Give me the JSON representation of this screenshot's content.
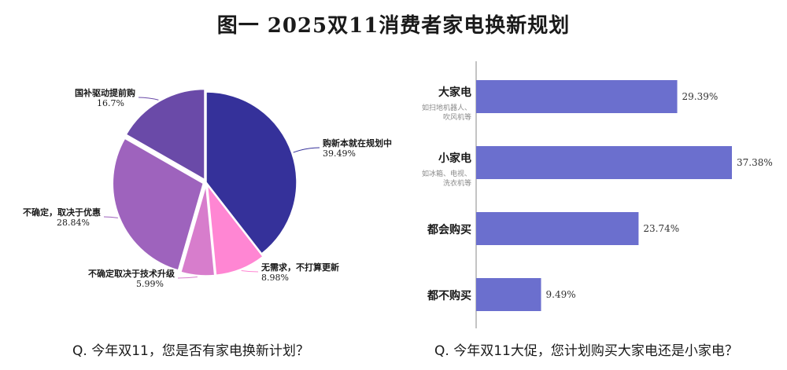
{
  "title": "图一  2025双11消费者家电换新规划",
  "chart_data": [
    {
      "type": "pie",
      "question": "Q. 今年双11，您是否有家电换新计划？",
      "slices": [
        {
          "label": "购新本就在规划中",
          "value": 39.49,
          "value_label": "39.49%",
          "color": "#35319a"
        },
        {
          "label": "无需求，不打算更新",
          "value": 8.98,
          "value_label": "8.98%",
          "color": "#ff86d3"
        },
        {
          "label": "不确定取决于技术升级",
          "value": 5.99,
          "value_label": "5.99%",
          "color": "#d77dcc"
        },
        {
          "label": "不确定，取决于优惠",
          "value": 28.84,
          "value_label": "28.84%",
          "color": "#9e63bd"
        },
        {
          "label": "国补驱动提前购",
          "value": 16.7,
          "value_label": "16.7%",
          "color": "#6a4aa8"
        }
      ]
    },
    {
      "type": "bar",
      "orientation": "horizontal",
      "question": "Q. 今年双11大促，您计划购买大家电还是小家电？",
      "color": "#6b6fce",
      "xlim": [
        0,
        40
      ],
      "categories": [
        {
          "label": "大家电",
          "sublabel": [
            "如扫地机器人、",
            "吹风机等"
          ],
          "value": 29.39,
          "value_label": "29.39%"
        },
        {
          "label": "小家电",
          "sublabel": [
            "如冰箱、电视、",
            "洗衣机等"
          ],
          "value": 37.38,
          "value_label": "37.38%"
        },
        {
          "label": "都会购买",
          "sublabel": [],
          "value": 23.74,
          "value_label": "23.74%"
        },
        {
          "label": "都不购买",
          "sublabel": [],
          "value": 9.49,
          "value_label": "9.49%"
        }
      ]
    }
  ]
}
